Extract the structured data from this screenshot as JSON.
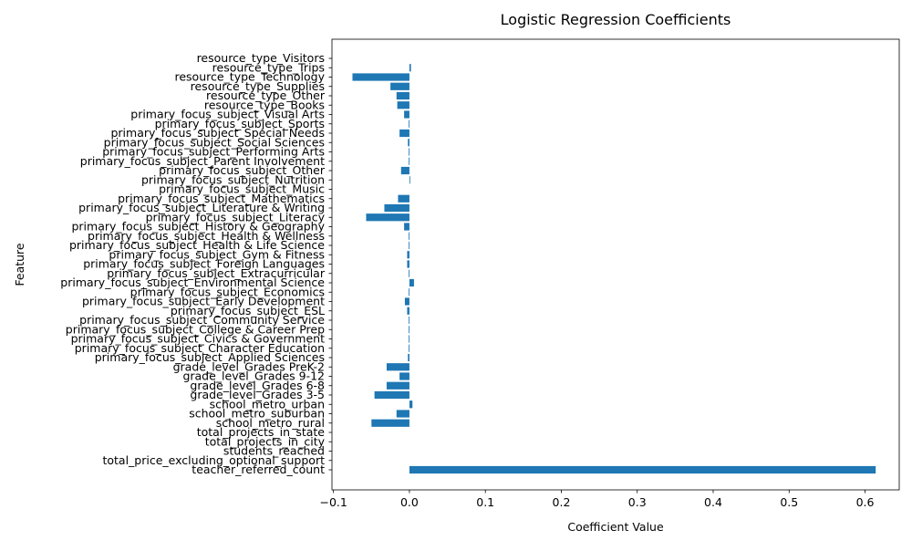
{
  "chart_data": {
    "type": "bar",
    "orientation": "horizontal",
    "title": "Logistic Regression Coefficients",
    "xlabel": "Coefficient Value",
    "ylabel": "Feature",
    "xlim": [
      -0.102,
      0.645
    ],
    "xticks": [
      -0.1,
      0.0,
      0.1,
      0.2,
      0.3,
      0.4,
      0.5,
      0.6
    ],
    "xtick_labels": [
      "−0.1",
      "0.0",
      "0.1",
      "0.2",
      "0.3",
      "0.4",
      "0.5",
      "0.6"
    ],
    "grid": false,
    "bar_color": "#1f77b4",
    "categories": [
      "teacher_referred_count",
      "total_price_excluding_optional_support",
      "students_reached",
      "total_projects_in_city",
      "total_projects_in_state",
      "school_metro_rural",
      "school_metro_suburban",
      "school_metro_urban",
      "grade_level_Grades 3-5",
      "grade_level_Grades 6-8",
      "grade_level_Grades 9-12",
      "grade_level_Grades PreK-2",
      "primary_focus_subject_Applied Sciences",
      "primary_focus_subject_Character Education",
      "primary_focus_subject_Civics & Government",
      "primary_focus_subject_College & Career Prep",
      "primary_focus_subject_Community Service",
      "primary_focus_subject_ESL",
      "primary_focus_subject_Early Development",
      "primary_focus_subject_Economics",
      "primary_focus_subject_Environmental Science",
      "primary_focus_subject_Extracurricular",
      "primary_focus_subject_Foreign Languages",
      "primary_focus_subject_Gym & Fitness",
      "primary_focus_subject_Health & Life Science",
      "primary_focus_subject_Health & Wellness",
      "primary_focus_subject_History & Geography",
      "primary_focus_subject_Literacy",
      "primary_focus_subject_Literature & Writing",
      "primary_focus_subject_Mathematics",
      "primary_focus_subject_Music",
      "primary_focus_subject_Nutrition",
      "primary_focus_subject_Other",
      "primary_focus_subject_Parent Involvement",
      "primary_focus_subject_Performing Arts",
      "primary_focus_subject_Social Sciences",
      "primary_focus_subject_Special Needs",
      "primary_focus_subject_Sports",
      "primary_focus_subject_Visual Arts",
      "resource_type_Books",
      "resource_type_Other",
      "resource_type_Supplies",
      "resource_type_Technology",
      "resource_type_Trips",
      "resource_type_Visitors"
    ],
    "values": [
      0.614,
      0.0,
      0.0,
      0.0,
      0.0,
      -0.05,
      -0.017,
      0.004,
      -0.046,
      -0.03,
      -0.013,
      -0.03,
      -0.002,
      -0.001,
      -0.001,
      -0.001,
      -0.001,
      -0.003,
      -0.006,
      -0.001,
      0.006,
      -0.001,
      -0.003,
      -0.003,
      -0.001,
      -0.001,
      -0.007,
      -0.057,
      -0.033,
      -0.015,
      0.0,
      0.001,
      -0.011,
      -0.001,
      -0.001,
      -0.002,
      -0.013,
      -0.001,
      -0.007,
      -0.016,
      -0.017,
      -0.025,
      -0.075,
      0.002,
      0.0
    ]
  }
}
